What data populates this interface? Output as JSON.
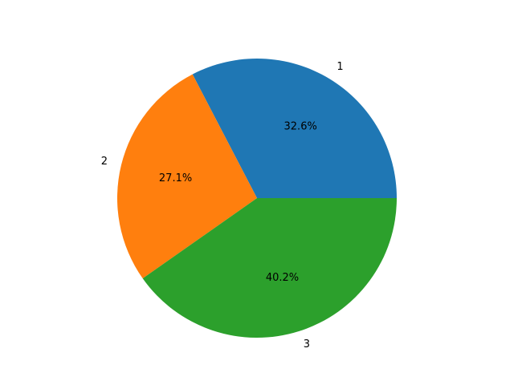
{
  "chart_data": {
    "type": "pie",
    "categories": [
      "1",
      "2",
      "3"
    ],
    "values": [
      32.6,
      27.1,
      40.2
    ],
    "value_labels": [
      "32.6%",
      "27.1%",
      "40.2%"
    ],
    "colors": [
      "#1f77b4",
      "#ff7f0e",
      "#2ca02c"
    ]
  }
}
